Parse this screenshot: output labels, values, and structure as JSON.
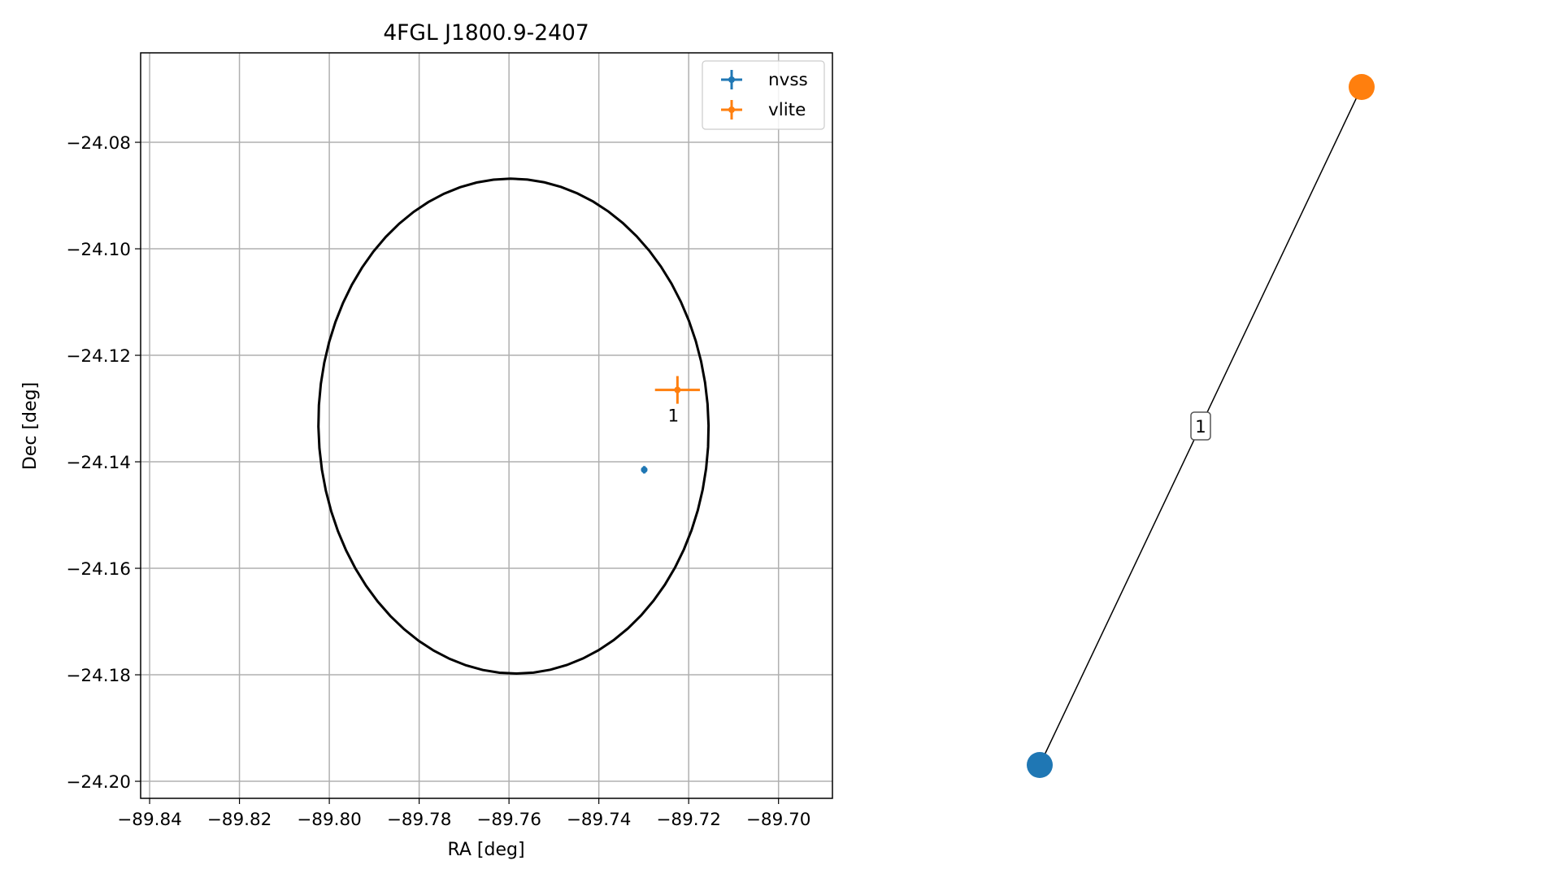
{
  "chart_data": [
    {
      "type": "scatter",
      "title": "4FGL J1800.9-2407",
      "xlabel": "RA [deg]",
      "ylabel": "Dec [deg]",
      "xlim": [
        -89.842,
        -89.688
      ],
      "ylim": [
        -24.2032,
        -24.0632
      ],
      "grid": true,
      "legend_position": "top-right",
      "x_ticks": [
        -89.84,
        -89.82,
        -89.8,
        -89.78,
        -89.76,
        -89.74,
        -89.72,
        -89.7
      ],
      "x_tick_labels": [
        "−89.84",
        "−89.82",
        "−89.80",
        "−89.78",
        "−89.76",
        "−89.74",
        "−89.72",
        "−89.70"
      ],
      "y_ticks": [
        -24.08,
        -24.1,
        -24.12,
        -24.14,
        -24.16,
        -24.18,
        -24.2
      ],
      "y_tick_labels": [
        "−24.08",
        "−24.10",
        "−24.12",
        "−24.14",
        "−24.16",
        "−24.18",
        "−24.20"
      ],
      "series": [
        {
          "name": "nvss",
          "color": "#1f77b4",
          "points": [
            {
              "x": -89.7299,
              "y": -24.1415,
              "xerr": 0.0007,
              "yerr": 0.0007
            }
          ]
        },
        {
          "name": "vlite",
          "color": "#ff7f0e",
          "points": [
            {
              "x": -89.7225,
              "y": -24.1265,
              "xerr": 0.005,
              "yerr": 0.0026,
              "label": "1"
            }
          ]
        }
      ],
      "ellipse": {
        "center_x": -89.759,
        "center_y": -24.1333,
        "width": 0.0868,
        "height": 0.093,
        "angle": 5.5,
        "color": "#000000"
      }
    },
    {
      "type": "graph",
      "nodes": [
        {
          "id": "nvss",
          "color": "#1f77b4",
          "x": 0.0,
          "y": 0.0
        },
        {
          "id": "vlite",
          "color": "#ff7f0e",
          "x": 1.0,
          "y": 2.1
        }
      ],
      "edges": [
        {
          "source": "nvss",
          "target": "vlite",
          "label": "1"
        }
      ]
    }
  ]
}
